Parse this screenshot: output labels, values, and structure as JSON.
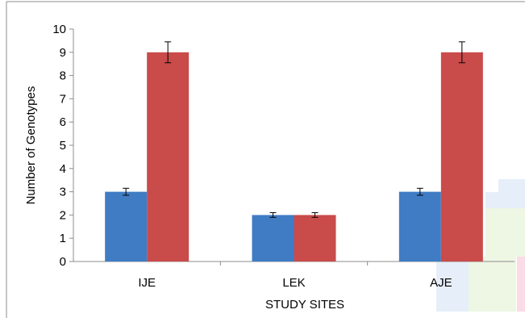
{
  "chart_data": {
    "type": "bar",
    "xlabel": "STUDY SITES",
    "ylabel": "Number of Genotypes",
    "categories": [
      "IJE",
      "LEK",
      "AJE"
    ],
    "ylim": [
      0,
      10
    ],
    "yticks": [
      "0",
      "1",
      "2",
      "3",
      "4",
      "5",
      "6",
      "7",
      "8",
      "9",
      "10"
    ],
    "grid": false,
    "legend": "none",
    "series": [
      {
        "values": [
          3,
          2,
          3
        ],
        "error": [
          0.15,
          0.1,
          0.15
        ],
        "color": "#3f7cc4"
      },
      {
        "values": [
          9,
          2,
          9
        ],
        "error": [
          0.45,
          0.1,
          0.45
        ],
        "color": "#c94b4a"
      }
    ]
  }
}
